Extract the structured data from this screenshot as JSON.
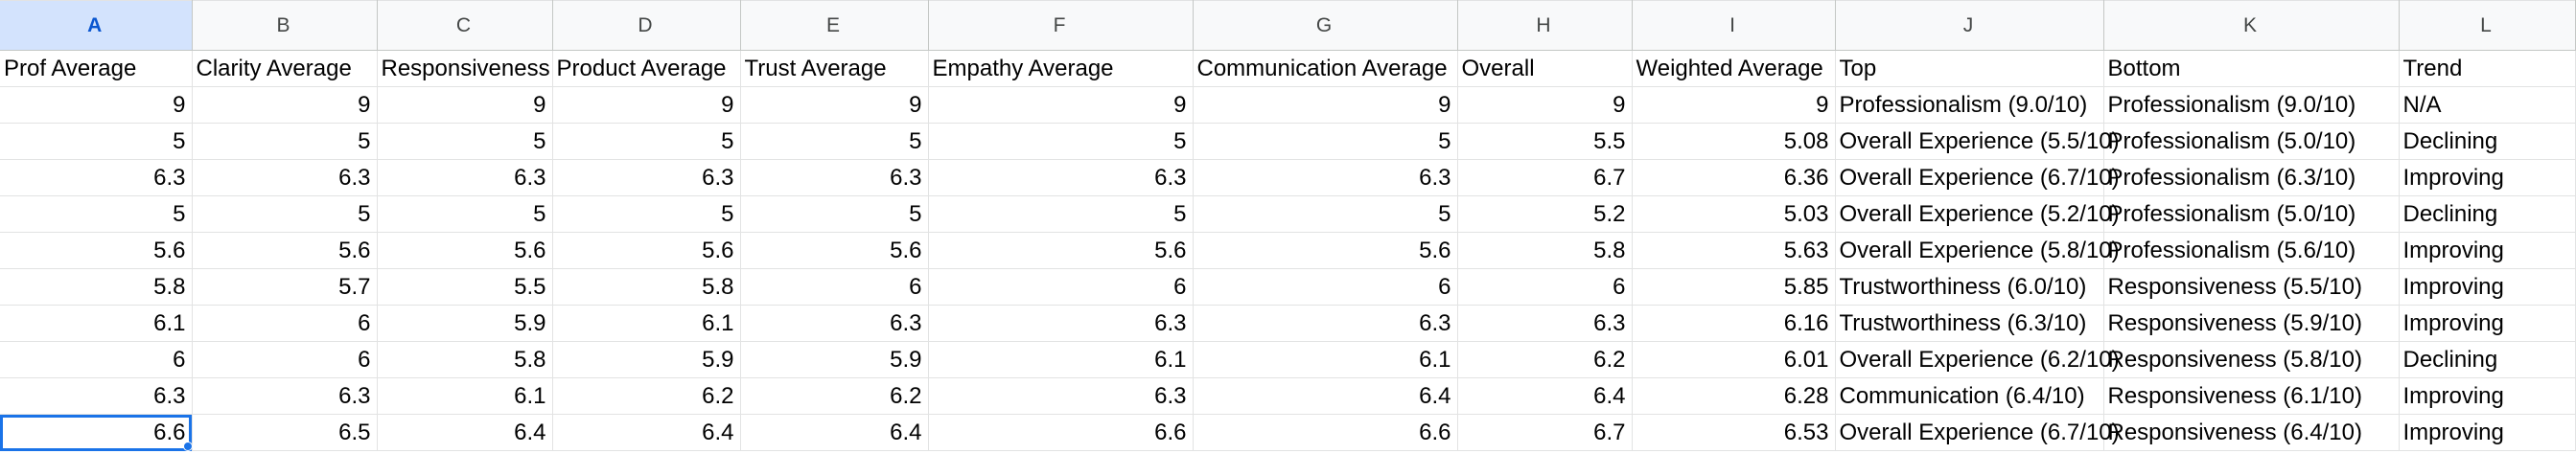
{
  "columns": [
    "A",
    "B",
    "C",
    "D",
    "E",
    "F",
    "G",
    "H",
    "I",
    "J",
    "K",
    "L"
  ],
  "headers": [
    "Prof Average",
    "Clarity Average",
    "Responsiveness",
    "Product Average",
    "Trust Average",
    "Empathy Average",
    "Communication Average",
    "Overall",
    "Weighted Average",
    "Top",
    "Bottom",
    "Trend"
  ],
  "rows": [
    [
      "9",
      "9",
      "9",
      "9",
      "9",
      "9",
      "9",
      "9",
      "9",
      "Professionalism (9.0/10)",
      "Professionalism (9.0/10)",
      "N/A"
    ],
    [
      "5",
      "5",
      "5",
      "5",
      "5",
      "5",
      "5",
      "5.5",
      "5.08",
      "Overall Experience (5.5/10)",
      "Professionalism (5.0/10)",
      "Declining"
    ],
    [
      "6.3",
      "6.3",
      "6.3",
      "6.3",
      "6.3",
      "6.3",
      "6.3",
      "6.7",
      "6.36",
      "Overall Experience (6.7/10)",
      "Professionalism (6.3/10)",
      "Improving"
    ],
    [
      "5",
      "5",
      "5",
      "5",
      "5",
      "5",
      "5",
      "5.2",
      "5.03",
      "Overall Experience (5.2/10)",
      "Professionalism (5.0/10)",
      "Declining"
    ],
    [
      "5.6",
      "5.6",
      "5.6",
      "5.6",
      "5.6",
      "5.6",
      "5.6",
      "5.8",
      "5.63",
      "Overall Experience (5.8/10)",
      "Professionalism (5.6/10)",
      "Improving"
    ],
    [
      "5.8",
      "5.7",
      "5.5",
      "5.8",
      "6",
      "6",
      "6",
      "6",
      "5.85",
      "Trustworthiness (6.0/10)",
      "Responsiveness (5.5/10)",
      "Improving"
    ],
    [
      "6.1",
      "6",
      "5.9",
      "6.1",
      "6.3",
      "6.3",
      "6.3",
      "6.3",
      "6.16",
      "Trustworthiness (6.3/10)",
      "Responsiveness (5.9/10)",
      "Improving"
    ],
    [
      "6",
      "6",
      "5.8",
      "5.9",
      "5.9",
      "6.1",
      "6.1",
      "6.2",
      "6.01",
      "Overall Experience (6.2/10)",
      "Responsiveness (5.8/10)",
      "Declining"
    ],
    [
      "6.3",
      "6.3",
      "6.1",
      "6.2",
      "6.2",
      "6.3",
      "6.4",
      "6.4",
      "6.28",
      "Communication (6.4/10)",
      "Responsiveness (6.1/10)",
      "Improving"
    ],
    [
      "6.6",
      "6.5",
      "6.4",
      "6.4",
      "6.4",
      "6.6",
      "6.6",
      "6.7",
      "6.53",
      "Overall Experience (6.7/10)",
      "Responsiveness (6.4/10)",
      "Improving"
    ]
  ],
  "selected_column": "A",
  "active_cell": "A11",
  "colors": {
    "selection": "#1a73e8",
    "header_selected_bg": "#d3e3fd",
    "header_bg": "#f8f9fa",
    "gridline": "#e2e3e3"
  }
}
